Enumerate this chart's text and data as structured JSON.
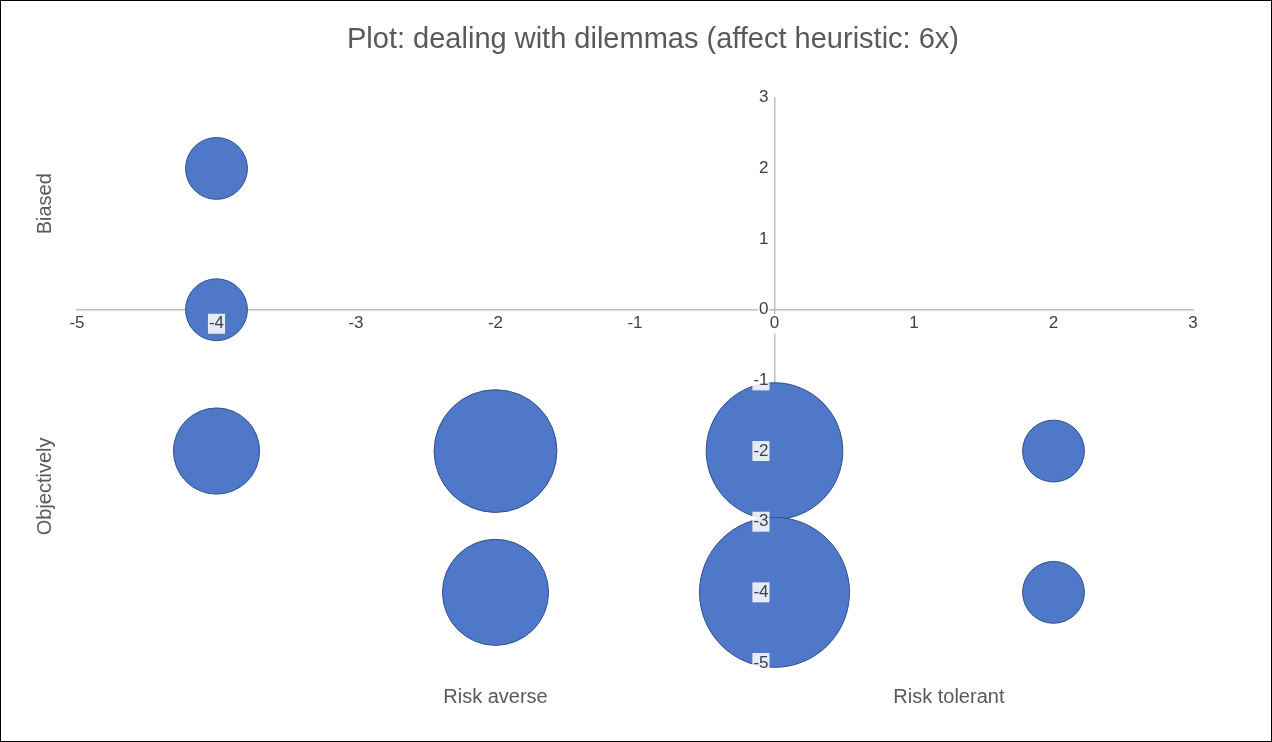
{
  "chart_data": {
    "type": "bubble",
    "title": "Plot: dealing with dilemmas (affect heuristic: 6x)",
    "annotations": [
      "Biased",
      "Objectively",
      "Risk averse",
      "Risk tolerant"
    ],
    "x": [
      -4,
      -4,
      -4,
      -2,
      0,
      2,
      -2,
      0,
      2
    ],
    "values": [
      2,
      0,
      -2,
      -2,
      -2,
      -2,
      -4,
      -4,
      -4
    ],
    "sizes": [
      0.17,
      0.17,
      0.33,
      0.67,
      0.83,
      0.17,
      0.5,
      1,
      0.17
    ],
    "color": "#4f78c8",
    "xlim": [
      -5,
      3
    ],
    "xticks": [
      -5,
      -4,
      -3,
      -2,
      -1,
      0,
      1,
      2,
      3
    ],
    "ylim": [
      -5,
      3
    ],
    "yticks": [
      -5,
      -4,
      -3,
      -2,
      -1,
      0,
      1,
      2,
      3
    ],
    "grid": false,
    "legend": false
  }
}
